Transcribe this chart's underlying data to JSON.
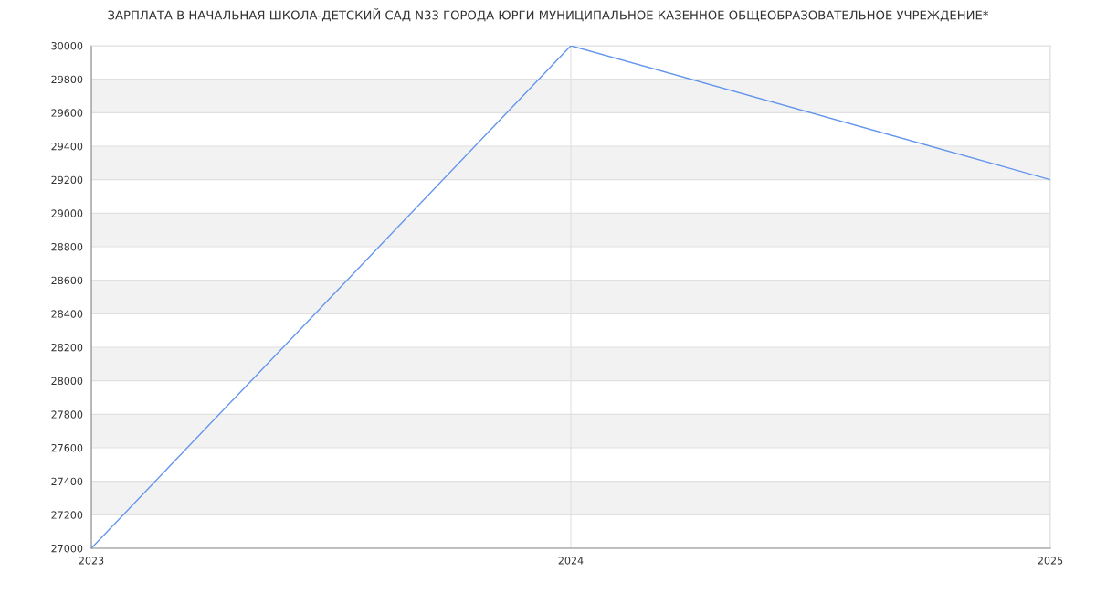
{
  "chart_data": {
    "type": "line",
    "title": "ЗАРПЛАТА В НАЧАЛЬНАЯ ШКОЛА-ДЕТСКИЙ САД N33 ГОРОДА ЮРГИ МУНИЦИПАЛЬНОЕ КАЗЕННОЕ ОБЩЕОБРАЗОВАТЕЛЬНОЕ УЧРЕЖДЕНИЕ*",
    "x": [
      2023,
      2024,
      2025
    ],
    "series": [
      {
        "color": "#6495ed",
        "values": [
          27000,
          30000,
          29200
        ]
      }
    ],
    "xlim": [
      2023,
      2025
    ],
    "xticks": [
      2023,
      2024,
      2025
    ],
    "ylim": [
      27000,
      30000
    ],
    "yticks": [
      27000,
      27200,
      27400,
      27600,
      27800,
      28000,
      28200,
      28400,
      28600,
      28800,
      29000,
      29200,
      29400,
      29600,
      29800,
      30000
    ],
    "grid": true,
    "marker": "none",
    "line_style": "solid"
  }
}
